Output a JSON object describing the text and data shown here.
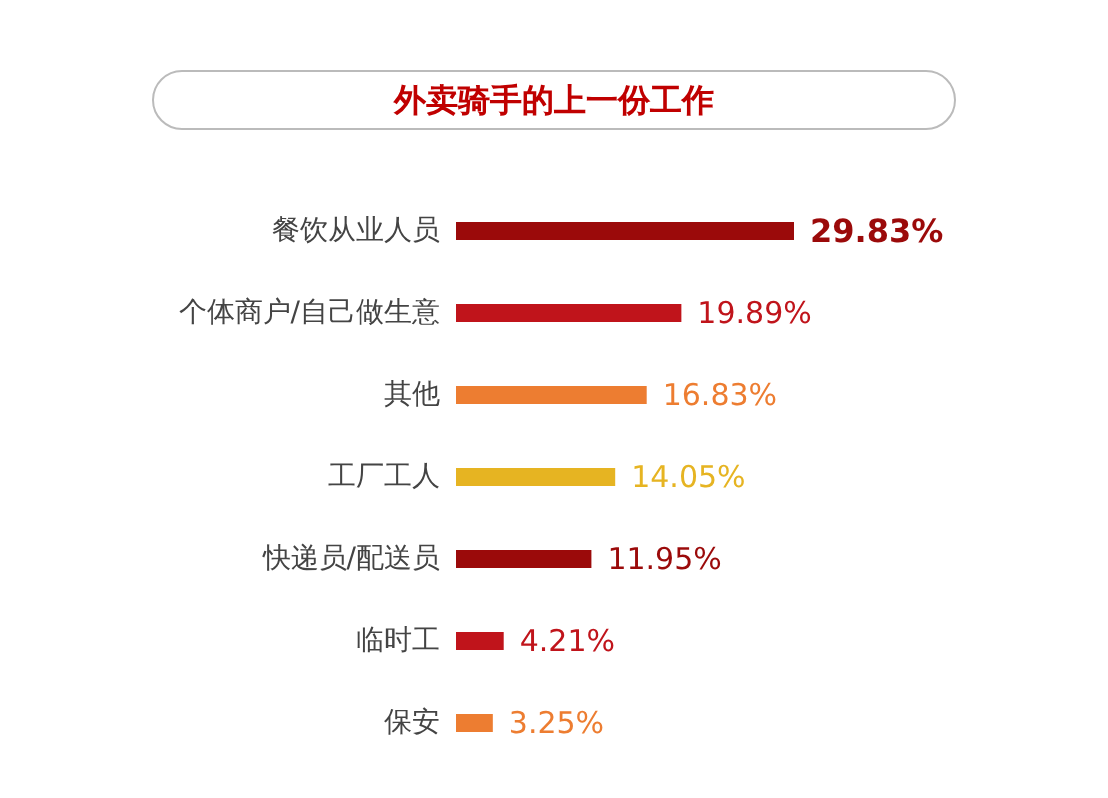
{
  "chart_data": {
    "type": "bar",
    "orientation": "horizontal",
    "title": "外卖骑手的上一份工作",
    "categories": [
      "餐饮从业人员",
      "个体商户/自己做生意",
      "其他",
      "工厂工人",
      "快递员/配送员",
      "临时工",
      "保安"
    ],
    "values": [
      29.83,
      19.89,
      16.83,
      14.05,
      11.95,
      4.21,
      3.25
    ],
    "colors": [
      "#9b0a0a",
      "#c0141b",
      "#ed7d31",
      "#e6b422",
      "#9b0a0a",
      "#c0141b",
      "#ed7d31"
    ],
    "value_labels": [
      "29.83%",
      "19.89%",
      "16.83%",
      "14.05%",
      "11.95%",
      "4.21%",
      "3.25%"
    ]
  }
}
